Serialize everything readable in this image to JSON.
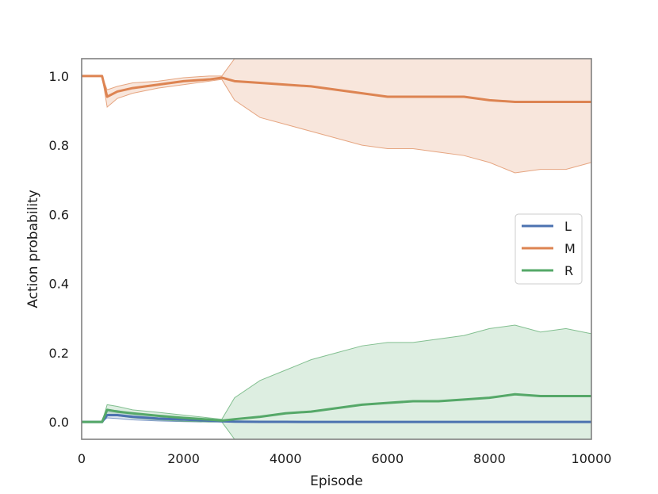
{
  "chart_data": {
    "type": "line",
    "title": "",
    "xlabel": "Episode",
    "ylabel": "Action probability",
    "xlim": [
      0,
      10000
    ],
    "ylim": [
      -0.05,
      1.05
    ],
    "xticks": [
      0,
      2000,
      4000,
      6000,
      8000,
      10000
    ],
    "xtick_labels": [
      "0",
      "2000",
      "4000",
      "6000",
      "8000",
      "10000"
    ],
    "yticks": [
      0.0,
      0.2,
      0.4,
      0.6,
      0.8,
      1.0
    ],
    "ytick_labels": [
      "0.0",
      "0.2",
      "0.4",
      "0.6",
      "0.8",
      "1.0"
    ],
    "grid": false,
    "legend_position": "center-right",
    "x": [
      0,
      400,
      500,
      700,
      1000,
      1500,
      2000,
      2500,
      2750,
      3000,
      3500,
      4000,
      4500,
      5000,
      5500,
      6000,
      6500,
      7000,
      7500,
      8000,
      8500,
      9000,
      9500,
      10000
    ],
    "series": [
      {
        "name": "L",
        "color": "#4c72b0",
        "values": [
          0.0,
          0.0,
          0.02,
          0.02,
          0.015,
          0.01,
          0.007,
          0.004,
          0.002,
          0.001,
          0.0005,
          0.0003,
          0.0002,
          0.0001,
          0.0,
          0.0,
          0.0,
          0.0,
          0.0,
          0.0,
          0.0,
          0.0,
          0.0,
          0.0
        ],
        "lower": [
          0.0,
          0.0,
          0.012,
          0.01,
          0.006,
          0.003,
          0.001,
          0.0,
          0.0,
          0.0,
          0.0,
          0.0,
          0.0,
          0.0,
          0.0,
          0.0,
          0.0,
          0.0,
          0.0,
          0.0,
          0.0,
          0.0,
          0.0,
          0.0
        ],
        "upper": [
          0.0,
          0.0,
          0.035,
          0.033,
          0.025,
          0.018,
          0.012,
          0.008,
          0.005,
          0.003,
          0.002,
          0.001,
          0.001,
          0.0005,
          0.0,
          0.0,
          0.0,
          0.0,
          0.0,
          0.0,
          0.0,
          0.0,
          0.0,
          0.0
        ]
      },
      {
        "name": "M",
        "color": "#dd8452",
        "values": [
          1.0,
          1.0,
          0.94,
          0.955,
          0.965,
          0.975,
          0.985,
          0.99,
          0.995,
          0.985,
          0.98,
          0.975,
          0.97,
          0.96,
          0.95,
          0.94,
          0.94,
          0.94,
          0.94,
          0.93,
          0.925,
          0.925,
          0.925,
          0.925
        ],
        "lower": [
          1.0,
          1.0,
          0.91,
          0.935,
          0.95,
          0.965,
          0.975,
          0.985,
          0.99,
          0.93,
          0.88,
          0.86,
          0.84,
          0.82,
          0.8,
          0.79,
          0.79,
          0.78,
          0.77,
          0.75,
          0.72,
          0.73,
          0.73,
          0.75
        ],
        "upper": [
          1.0,
          1.0,
          0.96,
          0.97,
          0.98,
          0.985,
          0.995,
          1.0,
          1.0,
          1.05,
          1.05,
          1.05,
          1.05,
          1.05,
          1.05,
          1.05,
          1.05,
          1.05,
          1.05,
          1.05,
          1.05,
          1.05,
          1.05,
          1.05
        ]
      },
      {
        "name": "R",
        "color": "#55a868",
        "values": [
          0.0,
          0.0,
          0.035,
          0.03,
          0.025,
          0.018,
          0.012,
          0.007,
          0.004,
          0.008,
          0.015,
          0.025,
          0.03,
          0.04,
          0.05,
          0.055,
          0.06,
          0.06,
          0.065,
          0.07,
          0.08,
          0.075,
          0.075,
          0.075
        ],
        "lower": [
          0.0,
          0.0,
          0.02,
          0.018,
          0.012,
          0.006,
          0.002,
          0.0,
          0.0,
          -0.05,
          -0.05,
          -0.05,
          -0.05,
          -0.05,
          -0.05,
          -0.05,
          -0.05,
          -0.05,
          -0.05,
          -0.05,
          -0.05,
          -0.05,
          -0.05,
          -0.05
        ],
        "upper": [
          0.0,
          0.0,
          0.05,
          0.045,
          0.035,
          0.028,
          0.02,
          0.012,
          0.008,
          0.07,
          0.12,
          0.15,
          0.18,
          0.2,
          0.22,
          0.23,
          0.23,
          0.24,
          0.25,
          0.27,
          0.28,
          0.26,
          0.27,
          0.255
        ]
      }
    ]
  }
}
